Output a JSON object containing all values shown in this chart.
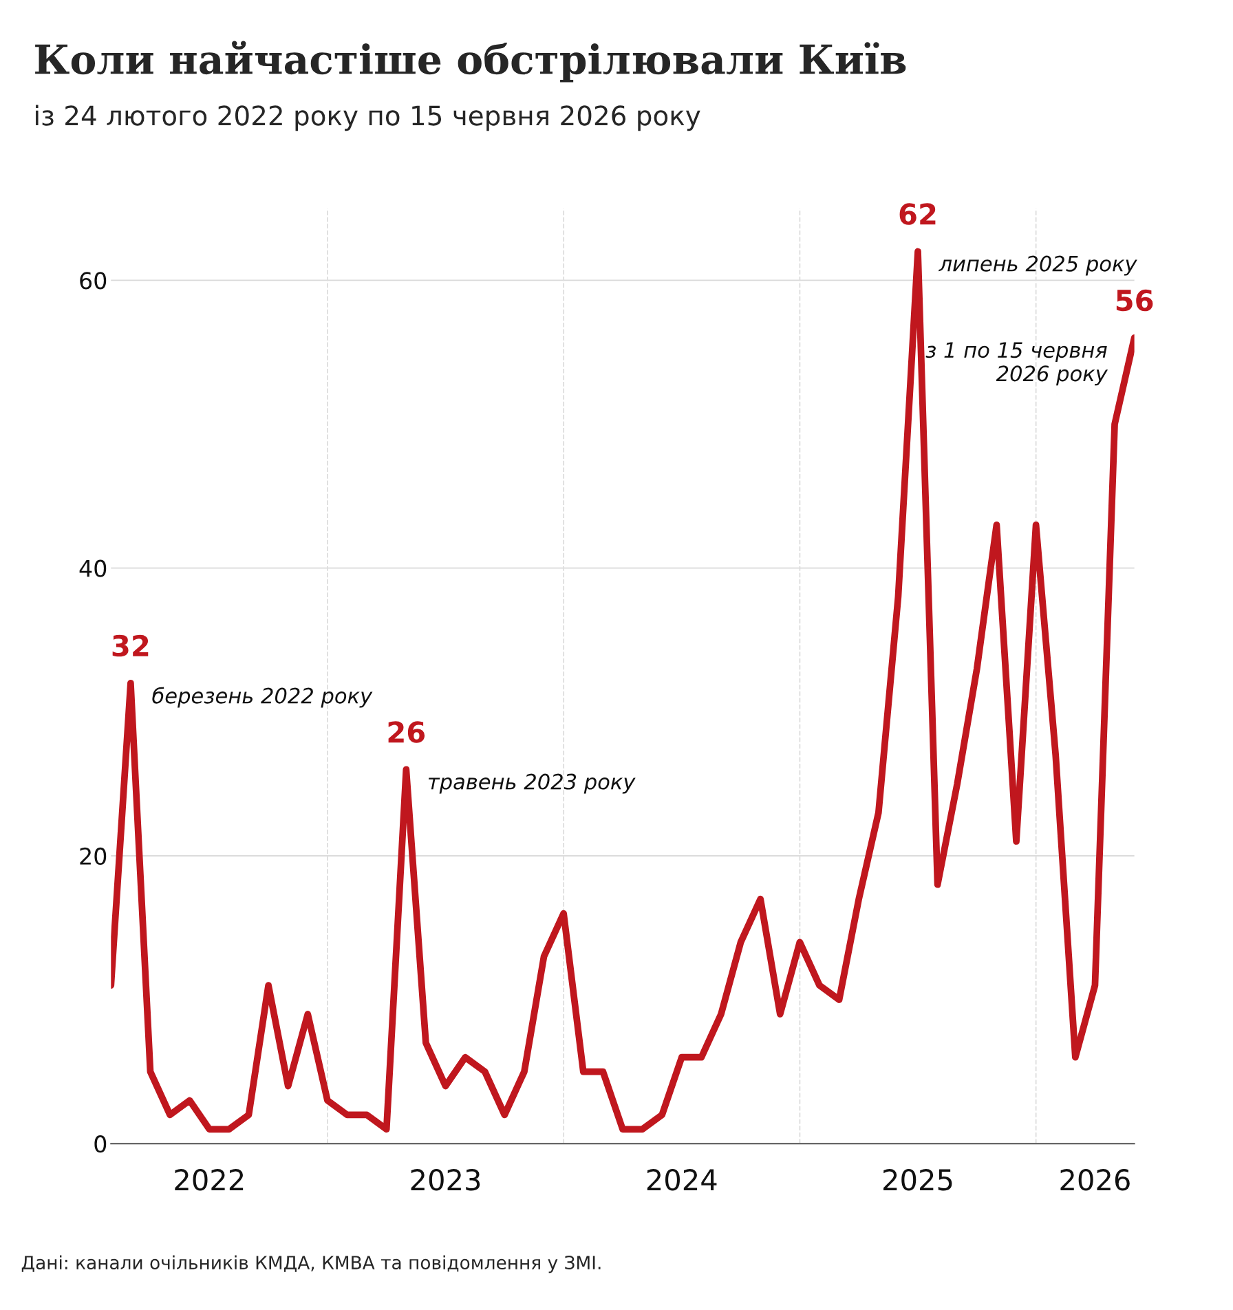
{
  "chart_data": {
    "type": "line",
    "title": "Коли найчастіше обстрілювали Київ",
    "subtitle": "із 24 лютого 2022 року по 15 червня 2026 року",
    "x": [
      "2022-02",
      "2022-03",
      "2022-04",
      "2022-05",
      "2022-06",
      "2022-07",
      "2022-08",
      "2022-09",
      "2022-10",
      "2022-11",
      "2022-12",
      "2023-01",
      "2023-02",
      "2023-03",
      "2023-04",
      "2023-05",
      "2023-06",
      "2023-07",
      "2023-08",
      "2023-09",
      "2023-10",
      "2023-11",
      "2023-12",
      "2024-01",
      "2024-02",
      "2024-03",
      "2024-04",
      "2024-05",
      "2024-06",
      "2024-07",
      "2024-08",
      "2024-09",
      "2024-10",
      "2024-11",
      "2024-12",
      "2025-01",
      "2025-02",
      "2025-03",
      "2025-04",
      "2025-05",
      "2025-06",
      "2025-07",
      "2025-08",
      "2025-09",
      "2025-10",
      "2025-11",
      "2025-12",
      "2026-01",
      "2026-02",
      "2026-03",
      "2026-04",
      "2026-05",
      "2026-06"
    ],
    "series": [
      {
        "color": "#c0171e",
        "values": [
          11,
          32,
          5,
          2,
          3,
          1,
          1,
          2,
          11,
          4,
          9,
          3,
          2,
          2,
          1,
          26,
          7,
          4,
          6,
          5,
          2,
          5,
          13,
          16,
          5,
          5,
          1,
          1,
          2,
          6,
          6,
          9,
          14,
          17,
          9,
          14,
          11,
          10,
          17,
          23,
          38,
          62,
          18,
          25,
          33,
          43,
          21,
          43,
          27,
          6,
          11,
          50,
          56
        ],
        "value_labels": [
          null,
          "32",
          null,
          null,
          null,
          null,
          null,
          null,
          null,
          null,
          null,
          null,
          null,
          null,
          null,
          "26",
          null,
          null,
          null,
          null,
          null,
          null,
          null,
          null,
          null,
          null,
          null,
          null,
          null,
          null,
          null,
          null,
          null,
          null,
          null,
          null,
          null,
          null,
          null,
          null,
          null,
          "62",
          null,
          null,
          null,
          null,
          null,
          null,
          null,
          null,
          null,
          null,
          "56"
        ]
      }
    ],
    "xlim": [
      "2022-02",
      "2026-06"
    ],
    "ylim": [
      0,
      65
    ],
    "yticks": [
      0,
      20,
      40,
      60
    ],
    "xticks": [
      {
        "value": "2022-07",
        "label": "2022"
      },
      {
        "value": "2023-07",
        "label": "2023"
      },
      {
        "value": "2024-07",
        "label": "2024"
      },
      {
        "value": "2025-07",
        "label": "2025"
      },
      {
        "value": "2026-04",
        "label": "2026"
      }
    ],
    "grid": "y",
    "marker": "none",
    "line_style": "solid",
    "legend": false,
    "ref_lines": [
      {
        "axis": "x",
        "value": "2023-01",
        "line_style": "dashed",
        "color": "#dddddd"
      },
      {
        "axis": "x",
        "value": "2024-01",
        "line_style": "dashed",
        "color": "#dddddd"
      },
      {
        "axis": "x",
        "value": "2025-01",
        "line_style": "dashed",
        "color": "#dddddd"
      },
      {
        "axis": "x",
        "value": "2026-01",
        "line_style": "dashed",
        "color": "#dddddd"
      }
    ],
    "annotations": [
      {
        "text": "березень 2022 року",
        "x": "2022-03",
        "y": 32
      },
      {
        "text": "травень 2023 року",
        "x": "2023-05",
        "y": 26
      },
      {
        "text": "липень 2025 року",
        "x": "2025-07",
        "y": 62
      },
      {
        "text": "з 1 по 15 червня\n2026 року",
        "x": "2026-06",
        "y": 56
      },
      "Дані: канали очільників КМДА, КМВА та повідомлення у ЗМІ."
    ]
  }
}
